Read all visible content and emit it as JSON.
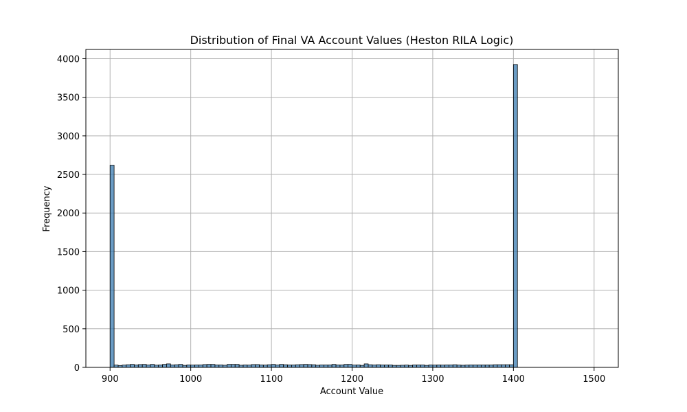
{
  "chart_data": {
    "type": "bar",
    "title": "Distribution of Final VA Account Values (Heston RILA Logic)",
    "xlabel": "Account Value",
    "ylabel": "Frequency",
    "xlim": [
      870,
      1530
    ],
    "ylim": [
      0,
      4120
    ],
    "xticks": [
      900,
      1000,
      1100,
      1200,
      1300,
      1400,
      1500
    ],
    "yticks": [
      0,
      500,
      1000,
      1500,
      2000,
      2500,
      3000,
      3500,
      4000
    ],
    "grid": true,
    "bin_start": 900,
    "bin_width": 5,
    "values": [
      2620,
      30,
      24,
      30,
      34,
      38,
      32,
      36,
      38,
      32,
      38,
      29,
      32,
      38,
      45,
      32,
      34,
      38,
      26,
      32,
      30,
      32,
      32,
      36,
      38,
      38,
      32,
      32,
      28,
      38,
      38,
      38,
      28,
      32,
      30,
      36,
      36,
      32,
      30,
      34,
      38,
      32,
      38,
      34,
      32,
      32,
      34,
      36,
      38,
      36,
      34,
      28,
      32,
      32,
      32,
      38,
      32,
      32,
      38,
      38,
      30,
      32,
      26,
      45,
      34,
      32,
      34,
      32,
      32,
      32,
      26,
      26,
      28,
      30,
      26,
      32,
      32,
      32,
      26,
      32,
      30,
      32,
      30,
      32,
      32,
      34,
      30,
      28,
      30,
      32,
      32,
      32,
      32,
      32,
      32,
      34,
      34,
      34,
      34,
      34,
      3925
    ],
    "bar_color": "#3a7bb0",
    "bar_fill_opacity": 0.75,
    "edge_color": "#000000",
    "grid_color": "#b0b0b0"
  }
}
